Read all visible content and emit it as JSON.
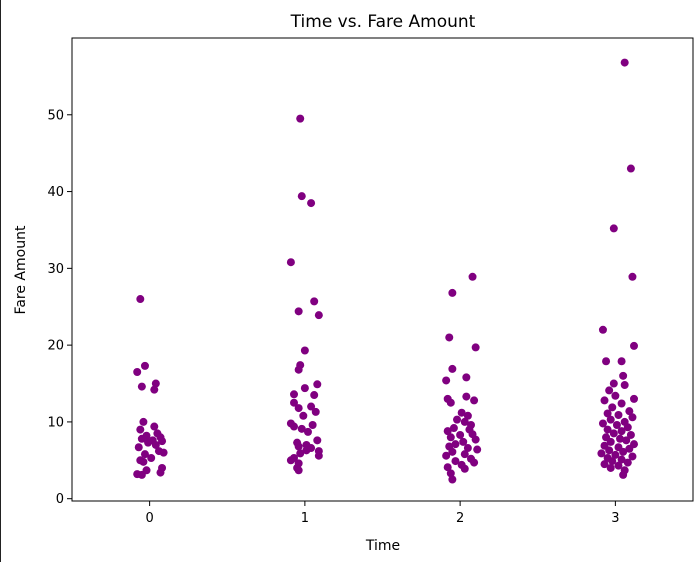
{
  "chart_data": {
    "type": "scatter",
    "title": "Time vs. Fare Amount",
    "xlabel": "Time",
    "ylabel": "Fare Amount",
    "categories": [
      "0",
      "1",
      "2",
      "3"
    ],
    "xlim": [
      -0.5,
      3.5
    ],
    "ylim": [
      -0.3,
      60
    ],
    "yticks": [
      0,
      10,
      20,
      30,
      40,
      50
    ],
    "grid": false,
    "marker_color": "#800080",
    "points": [
      {
        "x": -0.06,
        "y": 26.0
      },
      {
        "x": -0.03,
        "y": 17.3
      },
      {
        "x": -0.08,
        "y": 16.5
      },
      {
        "x": 0.04,
        "y": 15.0
      },
      {
        "x": -0.05,
        "y": 14.6
      },
      {
        "x": 0.03,
        "y": 14.2
      },
      {
        "x": -0.04,
        "y": 10.0
      },
      {
        "x": 0.03,
        "y": 9.4
      },
      {
        "x": -0.06,
        "y": 9.0
      },
      {
        "x": 0.05,
        "y": 8.5
      },
      {
        "x": -0.02,
        "y": 8.2
      },
      {
        "x": 0.07,
        "y": 8.0
      },
      {
        "x": -0.05,
        "y": 7.8
      },
      {
        "x": 0.02,
        "y": 7.6
      },
      {
        "x": 0.08,
        "y": 7.5
      },
      {
        "x": -0.01,
        "y": 7.3
      },
      {
        "x": 0.04,
        "y": 7.0
      },
      {
        "x": -0.07,
        "y": 6.7
      },
      {
        "x": 0.06,
        "y": 6.2
      },
      {
        "x": 0.09,
        "y": 6.0
      },
      {
        "x": -0.03,
        "y": 5.8
      },
      {
        "x": 0.01,
        "y": 5.3
      },
      {
        "x": -0.06,
        "y": 5.0
      },
      {
        "x": -0.04,
        "y": 4.8
      },
      {
        "x": 0.08,
        "y": 4.0
      },
      {
        "x": -0.02,
        "y": 3.7
      },
      {
        "x": 0.07,
        "y": 3.4
      },
      {
        "x": -0.08,
        "y": 3.2
      },
      {
        "x": -0.05,
        "y": 3.1
      },
      {
        "x": 0.97,
        "y": 49.5
      },
      {
        "x": 0.98,
        "y": 39.4
      },
      {
        "x": 1.04,
        "y": 38.5
      },
      {
        "x": 0.91,
        "y": 30.8
      },
      {
        "x": 1.06,
        "y": 25.7
      },
      {
        "x": 0.96,
        "y": 24.4
      },
      {
        "x": 1.09,
        "y": 23.9
      },
      {
        "x": 1.0,
        "y": 19.3
      },
      {
        "x": 0.97,
        "y": 17.4
      },
      {
        "x": 0.96,
        "y": 16.8
      },
      {
        "x": 1.08,
        "y": 14.9
      },
      {
        "x": 1.0,
        "y": 14.4
      },
      {
        "x": 0.93,
        "y": 13.6
      },
      {
        "x": 1.06,
        "y": 13.5
      },
      {
        "x": 0.93,
        "y": 12.5
      },
      {
        "x": 1.04,
        "y": 12.0
      },
      {
        "x": 0.96,
        "y": 11.8
      },
      {
        "x": 1.07,
        "y": 11.3
      },
      {
        "x": 0.99,
        "y": 10.8
      },
      {
        "x": 0.91,
        "y": 9.8
      },
      {
        "x": 1.05,
        "y": 9.6
      },
      {
        "x": 0.93,
        "y": 9.4
      },
      {
        "x": 0.98,
        "y": 9.1
      },
      {
        "x": 1.02,
        "y": 8.7
      },
      {
        "x": 1.08,
        "y": 7.6
      },
      {
        "x": 0.95,
        "y": 7.3
      },
      {
        "x": 1.01,
        "y": 7.0
      },
      {
        "x": 0.96,
        "y": 6.8
      },
      {
        "x": 1.04,
        "y": 6.6
      },
      {
        "x": 1.01,
        "y": 6.3
      },
      {
        "x": 1.09,
        "y": 6.2
      },
      {
        "x": 0.97,
        "y": 5.9
      },
      {
        "x": 1.09,
        "y": 5.6
      },
      {
        "x": 0.93,
        "y": 5.3
      },
      {
        "x": 0.91,
        "y": 5.0
      },
      {
        "x": 0.96,
        "y": 4.6
      },
      {
        "x": 0.95,
        "y": 4.0
      },
      {
        "x": 0.96,
        "y": 3.7
      },
      {
        "x": 2.08,
        "y": 28.9
      },
      {
        "x": 1.95,
        "y": 26.8
      },
      {
        "x": 1.93,
        "y": 21.0
      },
      {
        "x": 2.1,
        "y": 19.7
      },
      {
        "x": 1.95,
        "y": 16.9
      },
      {
        "x": 1.91,
        "y": 15.4
      },
      {
        "x": 2.04,
        "y": 15.8
      },
      {
        "x": 1.92,
        "y": 13.0
      },
      {
        "x": 1.94,
        "y": 12.5
      },
      {
        "x": 2.04,
        "y": 13.3
      },
      {
        "x": 2.09,
        "y": 12.8
      },
      {
        "x": 2.01,
        "y": 11.2
      },
      {
        "x": 2.05,
        "y": 10.8
      },
      {
        "x": 1.98,
        "y": 10.3
      },
      {
        "x": 2.03,
        "y": 10.0
      },
      {
        "x": 2.07,
        "y": 9.6
      },
      {
        "x": 1.96,
        "y": 9.2
      },
      {
        "x": 2.06,
        "y": 9.0
      },
      {
        "x": 1.92,
        "y": 8.8
      },
      {
        "x": 2.08,
        "y": 8.4
      },
      {
        "x": 2.0,
        "y": 8.3
      },
      {
        "x": 1.94,
        "y": 8.0
      },
      {
        "x": 2.1,
        "y": 7.7
      },
      {
        "x": 2.02,
        "y": 7.4
      },
      {
        "x": 1.97,
        "y": 7.1
      },
      {
        "x": 1.93,
        "y": 6.8
      },
      {
        "x": 2.05,
        "y": 6.6
      },
      {
        "x": 2.11,
        "y": 6.4
      },
      {
        "x": 1.95,
        "y": 6.1
      },
      {
        "x": 2.03,
        "y": 5.8
      },
      {
        "x": 1.91,
        "y": 5.6
      },
      {
        "x": 2.07,
        "y": 5.2
      },
      {
        "x": 1.97,
        "y": 4.9
      },
      {
        "x": 2.09,
        "y": 4.7
      },
      {
        "x": 2.01,
        "y": 4.4
      },
      {
        "x": 1.92,
        "y": 4.1
      },
      {
        "x": 2.03,
        "y": 3.9
      },
      {
        "x": 1.94,
        "y": 3.3
      },
      {
        "x": 1.95,
        "y": 2.5
      },
      {
        "x": 3.06,
        "y": 56.8
      },
      {
        "x": 3.1,
        "y": 43.0
      },
      {
        "x": 2.99,
        "y": 35.2
      },
      {
        "x": 3.11,
        "y": 28.9
      },
      {
        "x": 2.92,
        "y": 22.0
      },
      {
        "x": 3.12,
        "y": 19.9
      },
      {
        "x": 2.94,
        "y": 17.9
      },
      {
        "x": 3.04,
        "y": 17.9
      },
      {
        "x": 3.05,
        "y": 16.0
      },
      {
        "x": 2.99,
        "y": 15.0
      },
      {
        "x": 3.06,
        "y": 14.8
      },
      {
        "x": 2.96,
        "y": 14.1
      },
      {
        "x": 3.0,
        "y": 13.4
      },
      {
        "x": 3.12,
        "y": 13.0
      },
      {
        "x": 2.93,
        "y": 12.8
      },
      {
        "x": 3.04,
        "y": 12.4
      },
      {
        "x": 2.98,
        "y": 11.9
      },
      {
        "x": 3.09,
        "y": 11.4
      },
      {
        "x": 2.95,
        "y": 11.1
      },
      {
        "x": 3.02,
        "y": 10.9
      },
      {
        "x": 3.11,
        "y": 10.6
      },
      {
        "x": 2.97,
        "y": 10.3
      },
      {
        "x": 3.06,
        "y": 10.0
      },
      {
        "x": 2.92,
        "y": 9.8
      },
      {
        "x": 3.01,
        "y": 9.6
      },
      {
        "x": 3.08,
        "y": 9.3
      },
      {
        "x": 2.95,
        "y": 9.0
      },
      {
        "x": 3.04,
        "y": 8.8
      },
      {
        "x": 2.99,
        "y": 8.5
      },
      {
        "x": 3.1,
        "y": 8.3
      },
      {
        "x": 2.94,
        "y": 8.0
      },
      {
        "x": 3.03,
        "y": 7.8
      },
      {
        "x": 3.07,
        "y": 7.6
      },
      {
        "x": 2.97,
        "y": 7.4
      },
      {
        "x": 3.12,
        "y": 7.1
      },
      {
        "x": 2.93,
        "y": 6.9
      },
      {
        "x": 3.02,
        "y": 6.7
      },
      {
        "x": 3.09,
        "y": 6.5
      },
      {
        "x": 2.96,
        "y": 6.3
      },
      {
        "x": 3.05,
        "y": 6.1
      },
      {
        "x": 2.91,
        "y": 5.9
      },
      {
        "x": 3.0,
        "y": 5.7
      },
      {
        "x": 3.11,
        "y": 5.5
      },
      {
        "x": 2.95,
        "y": 5.3
      },
      {
        "x": 3.04,
        "y": 5.1
      },
      {
        "x": 2.98,
        "y": 4.9
      },
      {
        "x": 3.08,
        "y": 4.7
      },
      {
        "x": 2.93,
        "y": 4.5
      },
      {
        "x": 3.02,
        "y": 4.3
      },
      {
        "x": 2.97,
        "y": 4.0
      },
      {
        "x": 3.06,
        "y": 3.7
      },
      {
        "x": 3.05,
        "y": 3.1
      }
    ]
  }
}
